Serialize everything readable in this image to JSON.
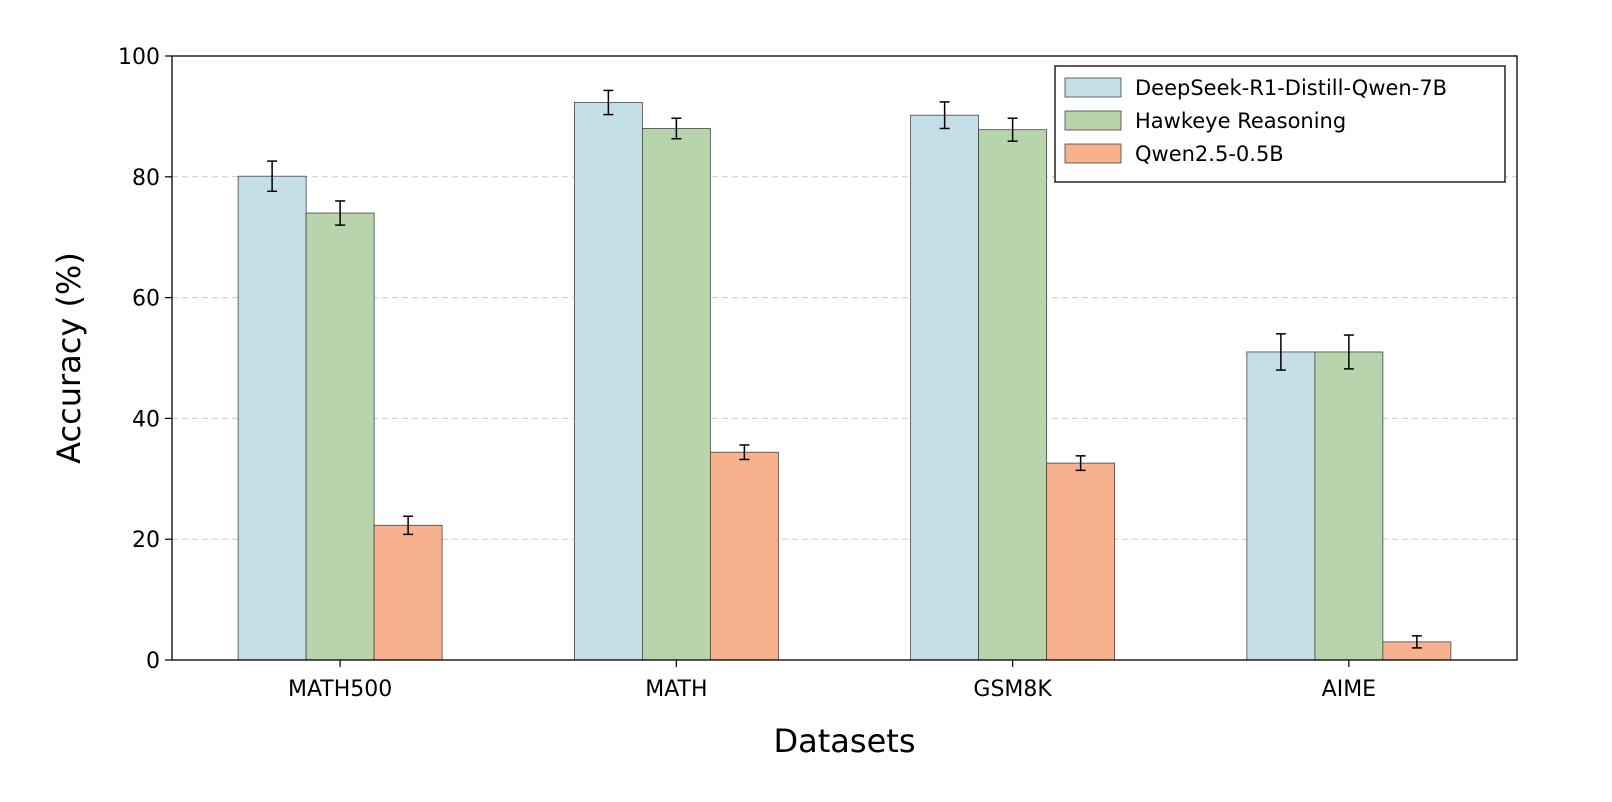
{
  "chart_data": {
    "type": "bar",
    "title": "",
    "xlabel": "Datasets",
    "ylabel": "Accuracy (%)",
    "ylim": [
      0,
      100
    ],
    "yticks": [
      0,
      20,
      40,
      60,
      80,
      100
    ],
    "grid": "y-dashed",
    "legend_position": "top-right",
    "categories": [
      "MATH500",
      "MATH",
      "GSM8K",
      "AIME"
    ],
    "series": [
      {
        "name": "DeepSeek-R1-Distill-Qwen-7B",
        "color": "#c5dfe9",
        "values": [
          80.1,
          92.3,
          90.2,
          51.0
        ],
        "errors": [
          2.5,
          2.0,
          2.2,
          3.0
        ]
      },
      {
        "name": "Hawkeye Reasoning",
        "color": "#b8d4ad",
        "values": [
          74.0,
          88.0,
          87.8,
          51.0
        ],
        "errors": [
          2.0,
          1.7,
          1.9,
          2.8
        ]
      },
      {
        "name": "Qwen2.5-0.5B",
        "color": "#f8b18d",
        "values": [
          22.3,
          34.4,
          32.6,
          3.0
        ],
        "errors": [
          1.5,
          1.2,
          1.2,
          1.0
        ]
      }
    ]
  }
}
